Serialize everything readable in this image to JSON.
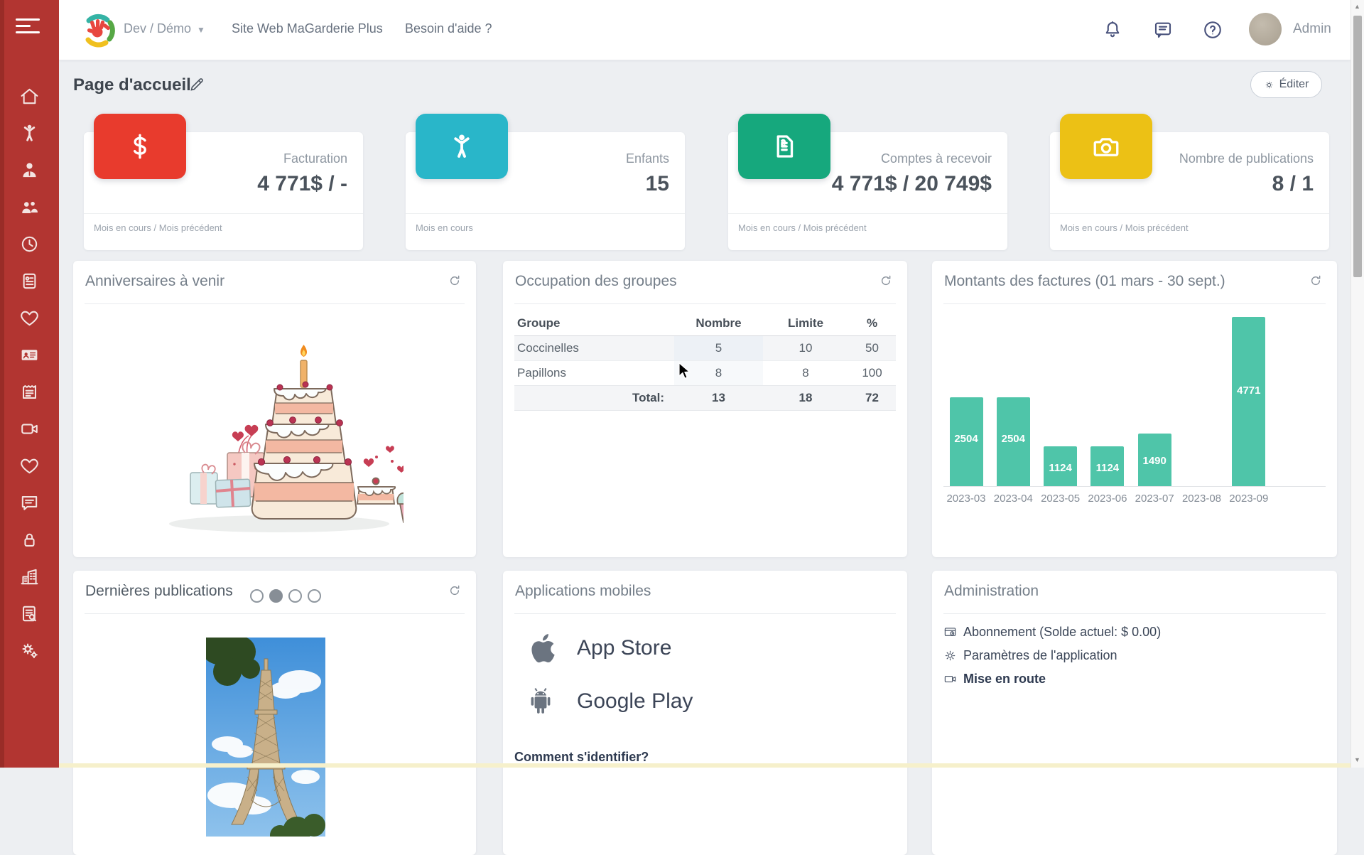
{
  "header": {
    "org_label": "Dev / Démo",
    "site_link": "Site Web MaGarderie Plus",
    "help_link": "Besoin d'aide ?",
    "user_name": "Admin",
    "icons": [
      "bell-icon",
      "messages-icon",
      "help-circle-icon"
    ]
  },
  "page": {
    "title": "Page d'accueil",
    "edit_label": "Éditer"
  },
  "stat_cards": [
    {
      "label": "Facturation",
      "value": "4 771$ / -",
      "footer": "Mois en cours / Mois précédent",
      "icon": "dollar-icon",
      "tile_color": "#e83b2d"
    },
    {
      "label": "Enfants",
      "value": "15",
      "footer": "Mois en cours",
      "icon": "child-icon",
      "tile_color": "#29b6c9"
    },
    {
      "label": "Comptes à recevoir",
      "value": "4 771$ / 20 749$",
      "footer": "Mois en cours / Mois précédent",
      "icon": "invoice-dollar-icon",
      "tile_color": "#16a87d"
    },
    {
      "label": "Nombre de publications",
      "value": "8 / 1",
      "footer": "Mois en cours / Mois précédent",
      "icon": "camera-icon",
      "tile_color": "#ecc115"
    }
  ],
  "birthdays_card": {
    "title": "Anniversaires à venir"
  },
  "groups_card": {
    "title": "Occupation des groupes",
    "table": {
      "headers": [
        "Groupe",
        "Nombre",
        "Limite",
        "%"
      ],
      "rows": [
        {
          "group": "Coccinelles",
          "count": "5",
          "limit": "10",
          "pct": "50"
        },
        {
          "group": "Papillons",
          "count": "8",
          "limit": "8",
          "pct": "100"
        }
      ],
      "total": {
        "label": "Total:",
        "count": "13",
        "limit": "18",
        "pct": "72"
      }
    }
  },
  "invoices_card": {
    "title": "Montants des factures (01 mars - 30 sept.)"
  },
  "chart_data": {
    "type": "bar",
    "title": "Montants des factures (01 mars - 30 sept.)",
    "categories": [
      "2023-03",
      "2023-04",
      "2023-05",
      "2023-06",
      "2023-07",
      "2023-08",
      "2023-09"
    ],
    "values": [
      2504,
      2504,
      1124,
      1124,
      1490,
      0,
      4771
    ],
    "bar_color": "#4fc5a9",
    "value_label_color": "#ffffff",
    "xlabel": "",
    "ylabel": "",
    "ylim": [
      0,
      4771
    ],
    "grid": false,
    "legend": false,
    "value_labels": true
  },
  "publications_card": {
    "title": "Dernières publications",
    "carousel": {
      "count": 4,
      "active_index": 1
    }
  },
  "apps_card": {
    "title": "Applications mobiles",
    "items": [
      {
        "label": "App Store",
        "icon": "apple-icon"
      },
      {
        "label": "Google Play",
        "icon": "android-icon"
      }
    ],
    "login_link": "Comment s'identifier?"
  },
  "admin_card": {
    "title": "Administration",
    "items": [
      {
        "label": "Abonnement (Solde actuel: $ 0.00)",
        "icon": "subscription-icon"
      },
      {
        "label": "Paramètres de l'application",
        "icon": "gear-icon"
      },
      {
        "label": "Mise en route",
        "icon": "video-icon"
      }
    ]
  },
  "sidebar_icons": [
    "home-icon",
    "child-icon",
    "educator-icon",
    "families-icon",
    "clock-icon",
    "billing-document-icon",
    "health-heart-icon",
    "contact-card-icon",
    "menu-clipboard-icon",
    "video-camera-icon",
    "activities-heart-icon",
    "chat-icon",
    "lock-icon",
    "building-icon",
    "report-search-icon",
    "settings-gears-icon"
  ],
  "colors": {
    "sidebar": "#b23531",
    "bar_teal": "#4fc5a9"
  }
}
